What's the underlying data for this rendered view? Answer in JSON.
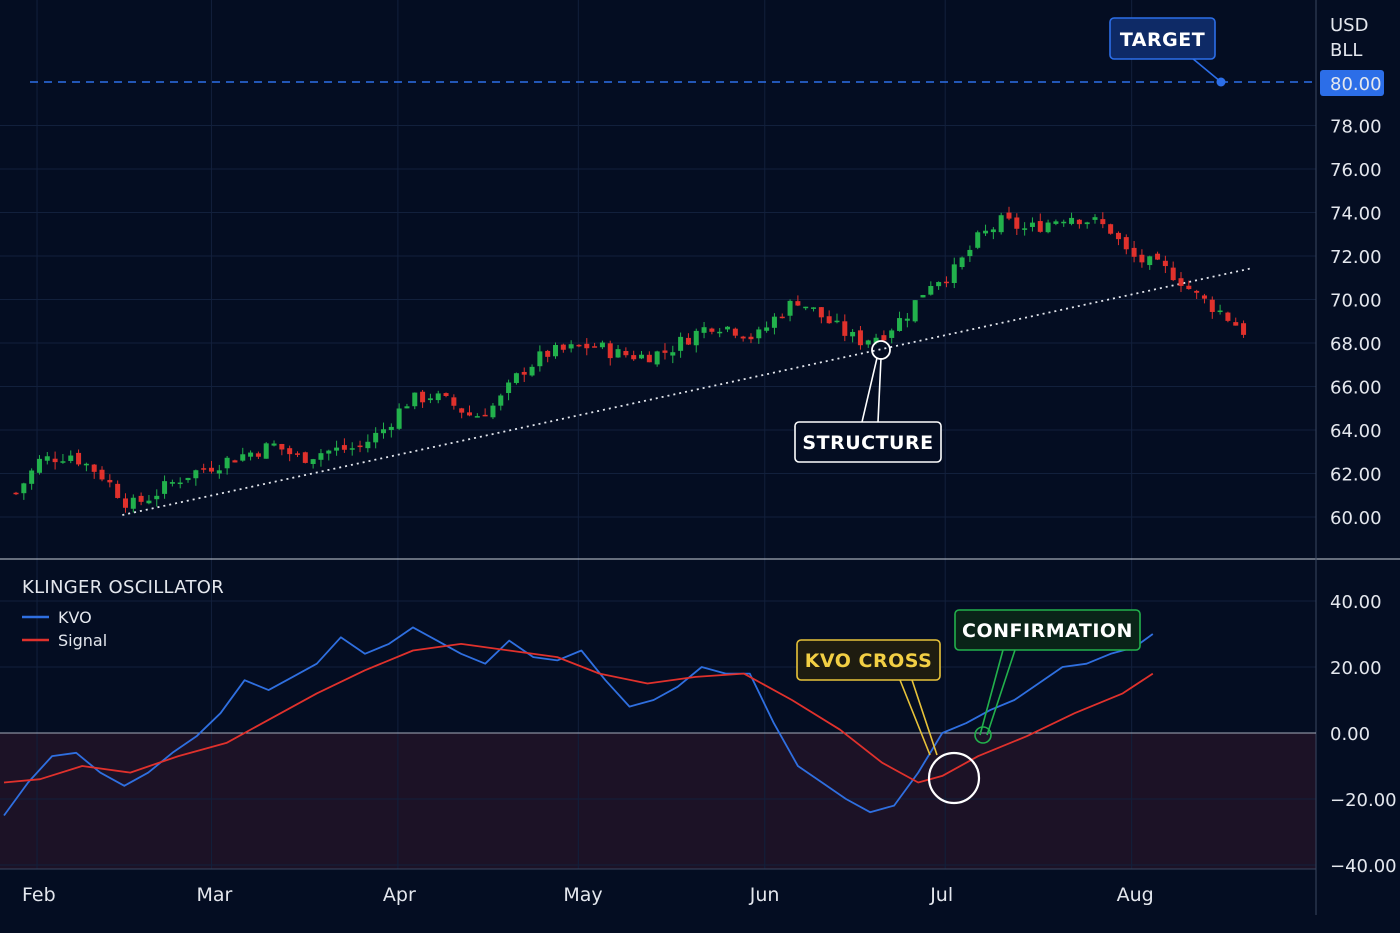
{
  "colors": {
    "background": "#040d22",
    "grid": "#12203c",
    "up": "#22b14c",
    "down": "#e0312c",
    "kvo": "#2f6fe0",
    "signal": "#e0312c",
    "target": "#2c6ee8",
    "negative_zone": "#1c1226"
  },
  "price_axis": {
    "unit_line1": "USD",
    "unit_line2": "BLL",
    "ticks": [
      "78.00",
      "76.00",
      "74.00",
      "72.00",
      "70.00",
      "68.00",
      "66.00",
      "64.00",
      "62.00",
      "60.00"
    ],
    "current_value": "80.00"
  },
  "oscillator_axis": {
    "ticks": [
      "40.00",
      "20.00",
      "0.00",
      "−20.00",
      "−40.00"
    ]
  },
  "months": [
    "Feb",
    "Mar",
    "Apr",
    "May",
    "Jun",
    "Jul",
    "Aug"
  ],
  "oscillator": {
    "title": "KLINGER OSCILLATOR",
    "legend_kvo": "KVO",
    "legend_signal": "Signal"
  },
  "annotations": {
    "target": "TARGET",
    "structure": "STRUCTURE",
    "kvo_cross": "KVO CROSS",
    "confirmation": "CONFIRMATION"
  },
  "chart_data": [
    {
      "type": "candlestick",
      "title": "",
      "ylabel": "USD BLL",
      "ylim": [
        59,
        81
      ],
      "target_level": 80.0,
      "x_range": [
        "2024-01-30",
        "2024-08-25"
      ],
      "anchors": [
        [
          "2024-01-31",
          61.1
        ],
        [
          "2024-02-04",
          62.6
        ],
        [
          "2024-02-09",
          62.9
        ],
        [
          "2024-02-14",
          62.0
        ],
        [
          "2024-02-19",
          60.5
        ],
        [
          "2024-02-22",
          60.9
        ],
        [
          "2024-02-28",
          61.9
        ],
        [
          "2024-03-04",
          62.4
        ],
        [
          "2024-03-08",
          62.8
        ],
        [
          "2024-03-14",
          63.3
        ],
        [
          "2024-03-18",
          62.7
        ],
        [
          "2024-03-22",
          63.0
        ],
        [
          "2024-03-28",
          63.2
        ],
        [
          "2024-04-01",
          64.0
        ],
        [
          "2024-04-05",
          65.3
        ],
        [
          "2024-04-09",
          65.6
        ],
        [
          "2024-04-13",
          65.1
        ],
        [
          "2024-04-16",
          64.6
        ],
        [
          "2024-04-20",
          65.2
        ],
        [
          "2024-04-24",
          66.7
        ],
        [
          "2024-04-28",
          67.5
        ],
        [
          "2024-05-02",
          67.7
        ],
        [
          "2024-05-06",
          67.9
        ],
        [
          "2024-05-10",
          67.5
        ],
        [
          "2024-05-14",
          67.4
        ],
        [
          "2024-05-18",
          67.6
        ],
        [
          "2024-05-22",
          68.3
        ],
        [
          "2024-05-26",
          68.9
        ],
        [
          "2024-05-30",
          68.6
        ],
        [
          "2024-06-02",
          68.2
        ],
        [
          "2024-06-06",
          69.4
        ],
        [
          "2024-06-09",
          70.0
        ],
        [
          "2024-06-13",
          69.2
        ],
        [
          "2024-06-16",
          68.6
        ],
        [
          "2024-06-19",
          68.1
        ],
        [
          "2024-06-23",
          68.4
        ],
        [
          "2024-06-27",
          69.3
        ],
        [
          "2024-07-01",
          70.8
        ],
        [
          "2024-07-05",
          71.3
        ],
        [
          "2024-07-09",
          72.8
        ],
        [
          "2024-07-13",
          73.6
        ],
        [
          "2024-07-17",
          73.2
        ],
        [
          "2024-07-20",
          73.5
        ],
        [
          "2024-07-24",
          73.9
        ],
        [
          "2024-07-28",
          73.6
        ],
        [
          "2024-07-31",
          73.2
        ],
        [
          "2024-08-03",
          72.0
        ],
        [
          "2024-08-07",
          71.6
        ],
        [
          "2024-08-11",
          71.1
        ],
        [
          "2024-08-14",
          70.2
        ],
        [
          "2024-08-18",
          69.5
        ],
        [
          "2024-08-22",
          68.6
        ],
        [
          "2024-08-24",
          67.9
        ]
      ],
      "annotations": [
        {
          "label": "TARGET",
          "date": "2024-08-22",
          "value": 80.0
        },
        {
          "label": "STRUCTURE",
          "date": "2024-06-24",
          "value": 67.1
        }
      ],
      "trendline": [
        [
          "2024-02-21",
          60.0
        ],
        [
          "2024-08-24",
          70.5
        ]
      ]
    },
    {
      "type": "line",
      "title": "KLINGER OSCILLATOR",
      "ylim": [
        -45,
        45
      ],
      "x_range": [
        "2024-01-30",
        "2024-08-25"
      ],
      "series": [
        {
          "name": "KVO",
          "points": [
            [
              "2024-01-30",
              -25
            ],
            [
              "2024-02-03",
              -15
            ],
            [
              "2024-02-07",
              -7
            ],
            [
              "2024-02-11",
              -6
            ],
            [
              "2024-02-15",
              -12
            ],
            [
              "2024-02-19",
              -16
            ],
            [
              "2024-02-23",
              -12
            ],
            [
              "2024-02-27",
              -6
            ],
            [
              "2024-03-02",
              -1
            ],
            [
              "2024-03-06",
              6
            ],
            [
              "2024-03-10",
              16
            ],
            [
              "2024-03-14",
              13
            ],
            [
              "2024-03-18",
              17
            ],
            [
              "2024-03-22",
              21
            ],
            [
              "2024-03-26",
              29
            ],
            [
              "2024-03-30",
              24
            ],
            [
              "2024-04-03",
              27
            ],
            [
              "2024-04-07",
              32
            ],
            [
              "2024-04-11",
              28
            ],
            [
              "2024-04-15",
              24
            ],
            [
              "2024-04-19",
              21
            ],
            [
              "2024-04-23",
              28
            ],
            [
              "2024-04-27",
              23
            ],
            [
              "2024-05-01",
              22
            ],
            [
              "2024-05-05",
              25
            ],
            [
              "2024-05-09",
              16
            ],
            [
              "2024-05-13",
              8
            ],
            [
              "2024-05-17",
              10
            ],
            [
              "2024-05-21",
              14
            ],
            [
              "2024-05-25",
              20
            ],
            [
              "2024-05-29",
              18
            ],
            [
              "2024-06-02",
              18
            ],
            [
              "2024-06-06",
              3
            ],
            [
              "2024-06-10",
              -10
            ],
            [
              "2024-06-14",
              -15
            ],
            [
              "2024-06-18",
              -20
            ],
            [
              "2024-06-22",
              -24
            ],
            [
              "2024-06-26",
              -22
            ],
            [
              "2024-06-30",
              -12
            ],
            [
              "2024-07-04",
              0
            ],
            [
              "2024-07-08",
              3
            ],
            [
              "2024-07-12",
              7
            ],
            [
              "2024-07-16",
              10
            ],
            [
              "2024-07-20",
              15
            ],
            [
              "2024-07-24",
              20
            ],
            [
              "2024-07-28",
              21
            ],
            [
              "2024-08-01",
              24
            ],
            [
              "2024-08-05",
              26
            ],
            [
              "2024-08-08",
              30
            ]
          ]
        },
        {
          "name": "Signal",
          "points": [
            [
              "2024-01-30",
              -15
            ],
            [
              "2024-02-05",
              -14
            ],
            [
              "2024-02-12",
              -10
            ],
            [
              "2024-02-20",
              -12
            ],
            [
              "2024-02-28",
              -7
            ],
            [
              "2024-03-07",
              -3
            ],
            [
              "2024-03-14",
              4
            ],
            [
              "2024-03-22",
              12
            ],
            [
              "2024-03-30",
              19
            ],
            [
              "2024-04-07",
              25
            ],
            [
              "2024-04-15",
              27
            ],
            [
              "2024-04-23",
              25
            ],
            [
              "2024-05-01",
              23
            ],
            [
              "2024-05-08",
              18
            ],
            [
              "2024-05-16",
              15
            ],
            [
              "2024-05-24",
              17
            ],
            [
              "2024-06-01",
              18
            ],
            [
              "2024-06-09",
              10
            ],
            [
              "2024-06-17",
              1
            ],
            [
              "2024-06-24",
              -9
            ],
            [
              "2024-06-30",
              -15
            ],
            [
              "2024-07-04",
              -13
            ],
            [
              "2024-07-10",
              -7
            ],
            [
              "2024-07-18",
              -1
            ],
            [
              "2024-07-26",
              6
            ],
            [
              "2024-08-03",
              12
            ],
            [
              "2024-08-08",
              18
            ]
          ]
        }
      ],
      "annotations": [
        {
          "label": "KVO CROSS",
          "date": "2024-06-30",
          "value": -15
        },
        {
          "label": "CONFIRMATION",
          "date": "2024-07-05",
          "value": 0
        }
      ]
    }
  ]
}
